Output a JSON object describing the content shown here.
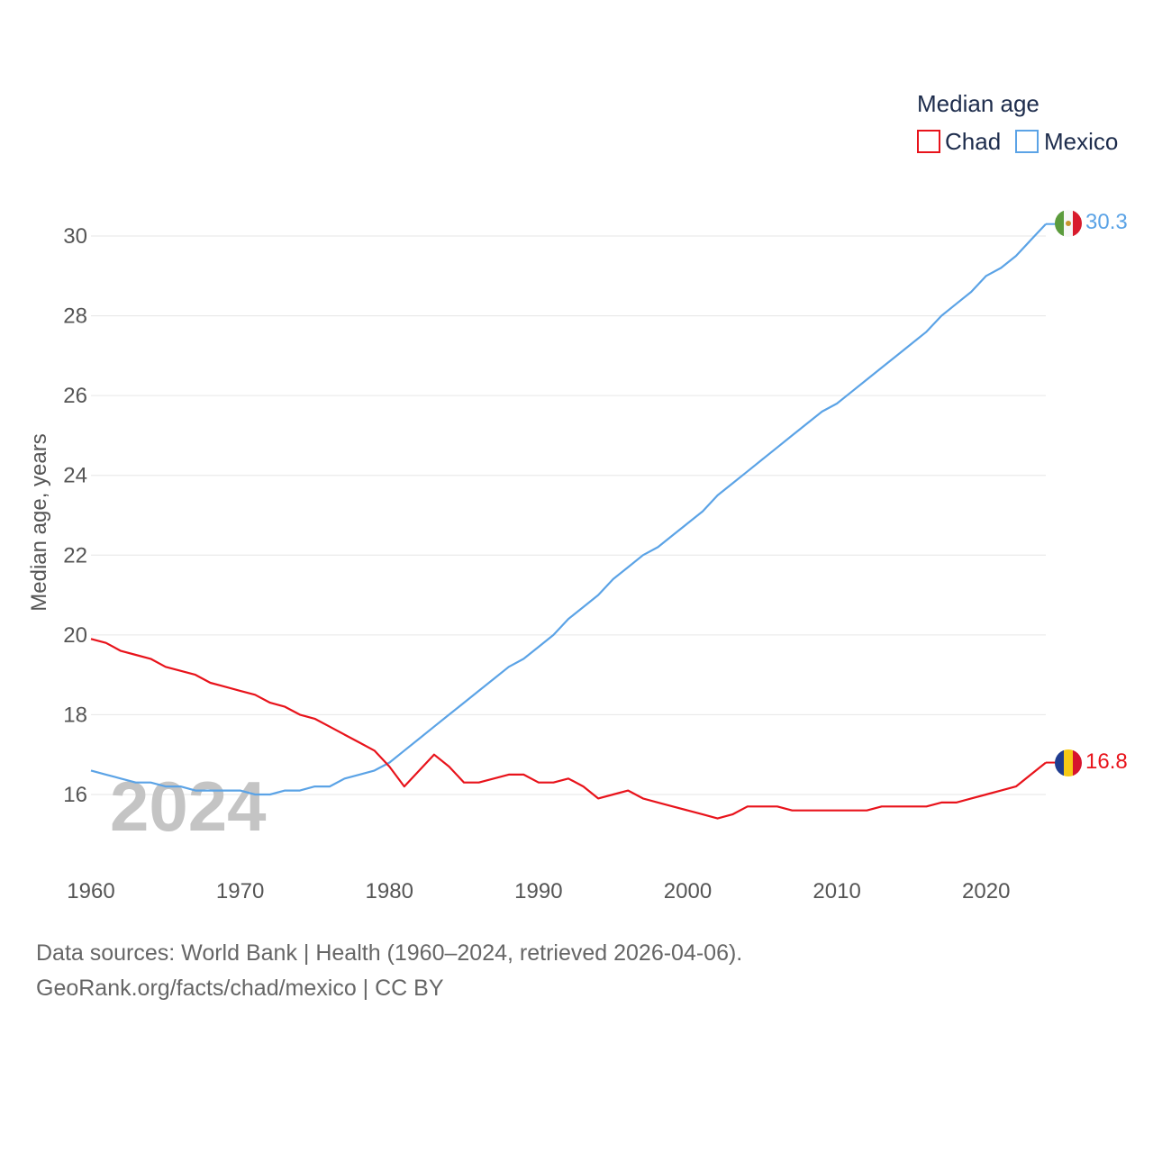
{
  "chart_data": {
    "type": "line",
    "legend_title": "Median age",
    "ylabel": "Median age, years",
    "xlabel": "",
    "xlim": [
      1960,
      2024
    ],
    "ylim": [
      15,
      31
    ],
    "yticks": [
      16,
      18,
      20,
      22,
      24,
      26,
      28,
      30
    ],
    "xticks": [
      1960,
      1970,
      1980,
      1990,
      2000,
      2010,
      2020
    ],
    "year_watermark": "2024",
    "legend_placement": "top-right",
    "x": [
      1960,
      1961,
      1962,
      1963,
      1964,
      1965,
      1966,
      1967,
      1968,
      1969,
      1970,
      1971,
      1972,
      1973,
      1974,
      1975,
      1976,
      1977,
      1978,
      1979,
      1980,
      1981,
      1982,
      1983,
      1984,
      1985,
      1986,
      1987,
      1988,
      1989,
      1990,
      1991,
      1992,
      1993,
      1994,
      1995,
      1996,
      1997,
      1998,
      1999,
      2000,
      2001,
      2002,
      2003,
      2004,
      2005,
      2006,
      2007,
      2008,
      2009,
      2010,
      2011,
      2012,
      2013,
      2014,
      2015,
      2016,
      2017,
      2018,
      2019,
      2020,
      2021,
      2022,
      2023,
      2024
    ],
    "series": [
      {
        "name": "Chad",
        "color": "#e8131b",
        "flag": "chad-flag-icon",
        "end_label": "16.8",
        "values": [
          19.9,
          19.8,
          19.6,
          19.5,
          19.4,
          19.2,
          19.1,
          19.0,
          18.8,
          18.7,
          18.6,
          18.5,
          18.3,
          18.2,
          18.0,
          17.9,
          17.7,
          17.5,
          17.3,
          17.1,
          16.7,
          16.2,
          16.6,
          17.0,
          16.7,
          16.3,
          16.3,
          16.4,
          16.5,
          16.5,
          16.3,
          16.3,
          16.4,
          16.2,
          15.9,
          16.0,
          16.1,
          15.9,
          15.8,
          15.7,
          15.6,
          15.5,
          15.4,
          15.5,
          15.7,
          15.7,
          15.7,
          15.6,
          15.6,
          15.6,
          15.6,
          15.6,
          15.6,
          15.7,
          15.7,
          15.7,
          15.7,
          15.8,
          15.8,
          15.9,
          16.0,
          16.1,
          16.2,
          16.5,
          16.8
        ]
      },
      {
        "name": "Mexico",
        "color": "#5ba3e6",
        "flag": "mexico-flag-icon",
        "end_label": "30.3",
        "values": [
          16.6,
          16.5,
          16.4,
          16.3,
          16.3,
          16.2,
          16.2,
          16.1,
          16.1,
          16.1,
          16.1,
          16.0,
          16.0,
          16.1,
          16.1,
          16.2,
          16.2,
          16.4,
          16.5,
          16.6,
          16.8,
          17.1,
          17.4,
          17.7,
          18.0,
          18.3,
          18.6,
          18.9,
          19.2,
          19.4,
          19.7,
          20.0,
          20.4,
          20.7,
          21.0,
          21.4,
          21.7,
          22.0,
          22.2,
          22.5,
          22.8,
          23.1,
          23.5,
          23.8,
          24.1,
          24.4,
          24.7,
          25.0,
          25.3,
          25.6,
          25.8,
          26.1,
          26.4,
          26.7,
          27.0,
          27.3,
          27.6,
          28.0,
          28.3,
          28.6,
          29.0,
          29.2,
          29.5,
          29.9,
          30.3
        ]
      }
    ]
  },
  "footer": {
    "source_line_1": "Data sources: World Bank | Health (1960–2024, retrieved 2026-04-06).",
    "source_line_2": "GeoRank.org/facts/chad/mexico | CC BY"
  }
}
